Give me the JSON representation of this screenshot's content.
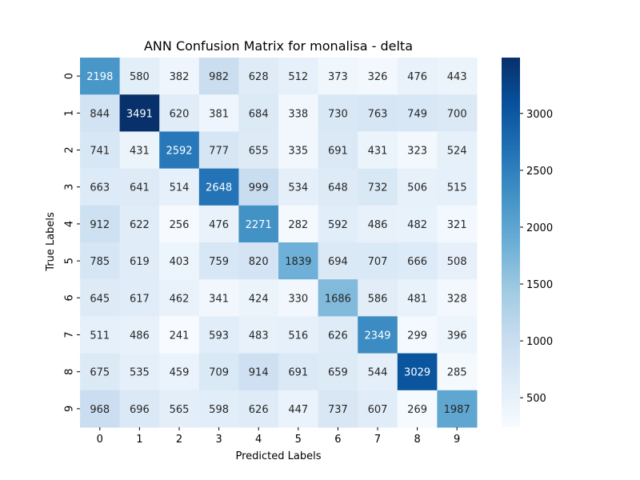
{
  "chart_data": {
    "type": "heatmap",
    "title": "ANN Confusion Matrix for monalisa - delta",
    "xlabel": "Predicted Labels",
    "ylabel": "True Labels",
    "x_categories": [
      "0",
      "1",
      "2",
      "3",
      "4",
      "5",
      "6",
      "7",
      "8",
      "9"
    ],
    "y_categories": [
      "0",
      "1",
      "2",
      "3",
      "4",
      "5",
      "6",
      "7",
      "8",
      "9"
    ],
    "values": [
      [
        2198,
        580,
        382,
        982,
        628,
        512,
        373,
        326,
        476,
        443
      ],
      [
        844,
        3491,
        620,
        381,
        684,
        338,
        730,
        763,
        749,
        700
      ],
      [
        741,
        431,
        2592,
        777,
        655,
        335,
        691,
        431,
        323,
        524
      ],
      [
        663,
        641,
        514,
        2648,
        999,
        534,
        648,
        732,
        506,
        515
      ],
      [
        912,
        622,
        256,
        476,
        2271,
        282,
        592,
        486,
        482,
        321
      ],
      [
        785,
        619,
        403,
        759,
        820,
        1839,
        694,
        707,
        666,
        508
      ],
      [
        645,
        617,
        462,
        341,
        424,
        330,
        1686,
        586,
        481,
        328
      ],
      [
        511,
        486,
        241,
        593,
        483,
        516,
        626,
        2349,
        299,
        396
      ],
      [
        675,
        535,
        459,
        709,
        914,
        691,
        659,
        544,
        3029,
        285
      ],
      [
        968,
        696,
        565,
        598,
        626,
        447,
        737,
        607,
        269,
        1987
      ]
    ],
    "colormap": "Blues",
    "vmin": 241,
    "vmax": 3491,
    "colorbar_ticks": [
      500,
      1000,
      1500,
      2000,
      2500,
      3000
    ],
    "annotations": true,
    "legend_placement": "right"
  }
}
